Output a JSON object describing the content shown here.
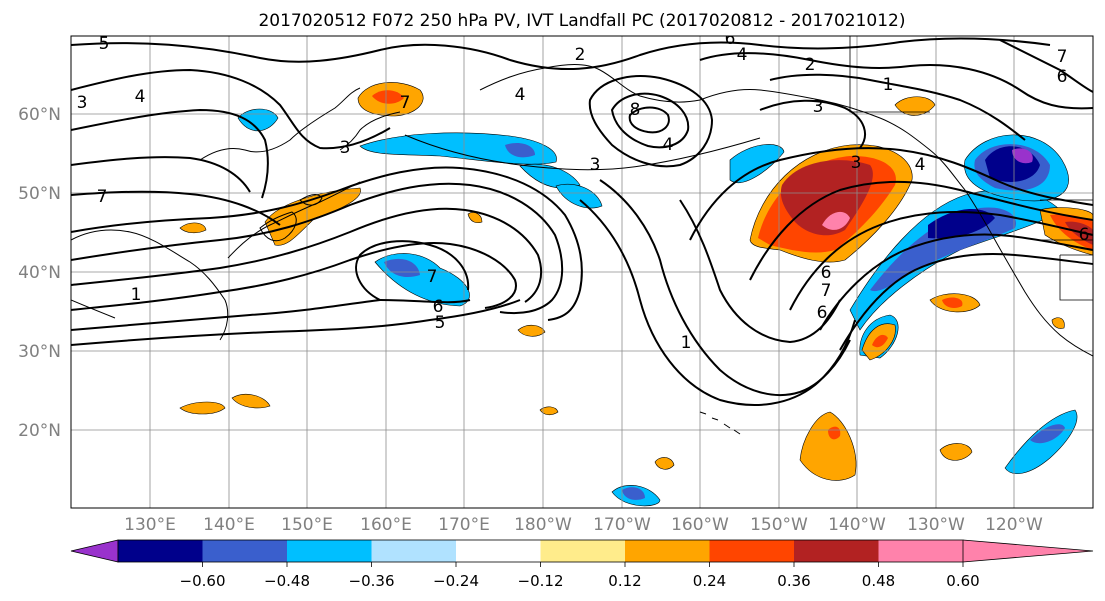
{
  "title": "2017020512 F072 250 hPa PV, IVT Landfall PC (2017020812 - 2017021012)",
  "lat_labels": [
    "60°N",
    "50°N",
    "40°N",
    "30°N",
    "20°N"
  ],
  "lon_labels": [
    "130°E",
    "140°E",
    "150°E",
    "160°E",
    "170°E",
    "180°W",
    "170°W",
    "160°W",
    "150°W",
    "140°W",
    "130°W",
    "120°W"
  ],
  "colorbar": {
    "colors": [
      "#9932cc",
      "#00008b",
      "#3a5fcd",
      "#00bfff",
      "#b0e2ff",
      "#ffffff",
      "#ffec8b",
      "#ffa500",
      "#ff4500",
      "#b22222",
      "#ff82ab"
    ],
    "tick_labels": [
      "−0.60",
      "−0.48",
      "−0.36",
      "−0.24",
      "−0.12",
      "0.12",
      "0.24",
      "0.36",
      "0.48",
      "0.60"
    ]
  },
  "pv_contour_labels": [
    "5",
    "4",
    "7",
    "3",
    "3",
    "6",
    "2",
    "8",
    "4",
    "2",
    "1",
    "6",
    "7",
    "4",
    "4",
    "3",
    "7",
    "6",
    "5",
    "1",
    "6",
    "7",
    "6",
    "3",
    "4",
    "3",
    "1",
    "7",
    "6"
  ]
}
